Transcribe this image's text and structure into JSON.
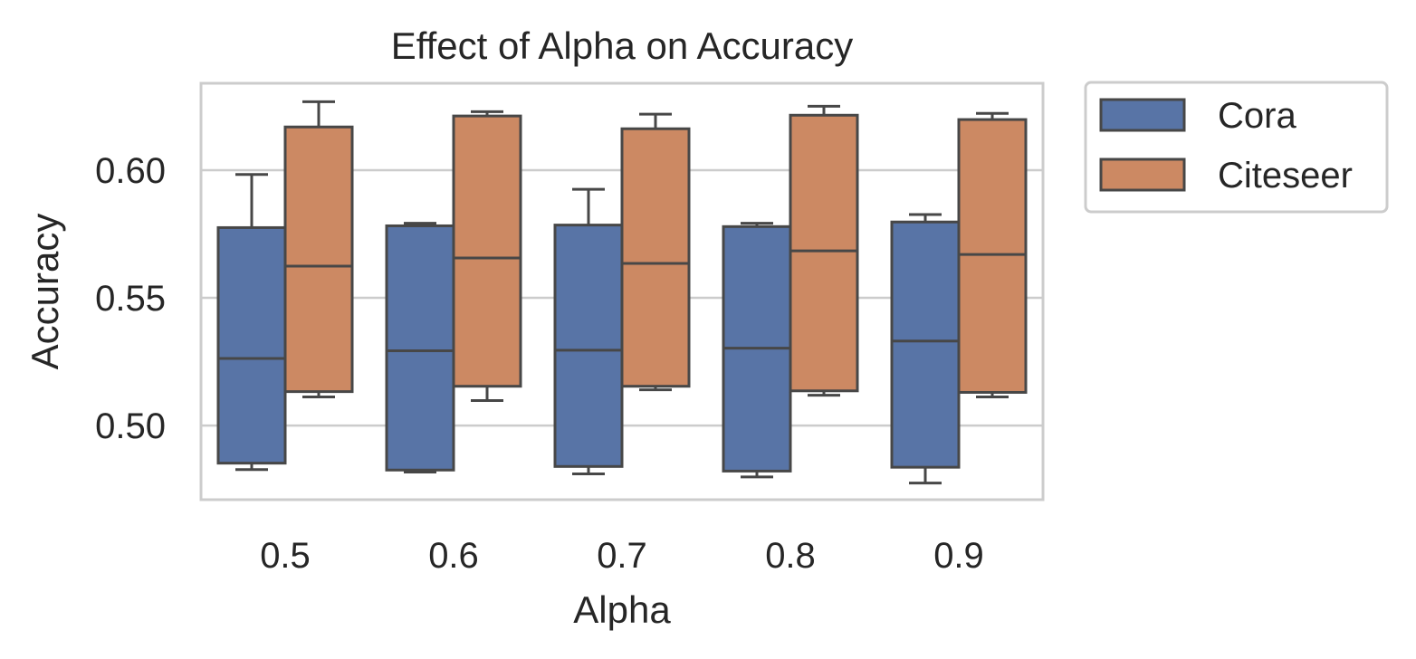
{
  "chart_data": {
    "type": "box",
    "title": "Effect of Alpha on Accuracy",
    "xlabel": "Alpha",
    "ylabel": "Accuracy",
    "categories": [
      "0.5",
      "0.6",
      "0.7",
      "0.8",
      "0.9"
    ],
    "ylim": [
      0.471,
      0.634
    ],
    "yticks": [
      0.5,
      0.55,
      0.6
    ],
    "ytick_labels": [
      "0.50",
      "0.55",
      "0.60"
    ],
    "grid": true,
    "legend_position": "outside-top-right",
    "series": [
      {
        "name": "Cora",
        "color": "#5874A6",
        "boxes": [
          {
            "whislo": 0.4828,
            "q1": 0.4853,
            "med": 0.5263,
            "q3": 0.5775,
            "whishi": 0.5983
          },
          {
            "whislo": 0.4818,
            "q1": 0.4826,
            "med": 0.5293,
            "q3": 0.5782,
            "whishi": 0.5792
          },
          {
            "whislo": 0.4811,
            "q1": 0.484,
            "med": 0.5295,
            "q3": 0.5785,
            "whishi": 0.5925
          },
          {
            "whislo": 0.4799,
            "q1": 0.4822,
            "med": 0.5303,
            "q3": 0.5779,
            "whishi": 0.5792
          },
          {
            "whislo": 0.4775,
            "q1": 0.4837,
            "med": 0.5331,
            "q3": 0.5797,
            "whishi": 0.5826
          }
        ]
      },
      {
        "name": "Citeseer",
        "color": "#CC8963",
        "boxes": [
          {
            "whislo": 0.5112,
            "q1": 0.5133,
            "med": 0.5624,
            "q3": 0.6169,
            "whishi": 0.6268
          },
          {
            "whislo": 0.5098,
            "q1": 0.5154,
            "med": 0.5656,
            "q3": 0.6212,
            "whishi": 0.6229
          },
          {
            "whislo": 0.514,
            "q1": 0.5154,
            "med": 0.5635,
            "q3": 0.6162,
            "whishi": 0.6219
          },
          {
            "whislo": 0.5119,
            "q1": 0.5136,
            "med": 0.5684,
            "q3": 0.6215,
            "whishi": 0.625
          },
          {
            "whislo": 0.5112,
            "q1": 0.513,
            "med": 0.567,
            "q3": 0.6198,
            "whishi": 0.6222
          }
        ]
      }
    ]
  }
}
